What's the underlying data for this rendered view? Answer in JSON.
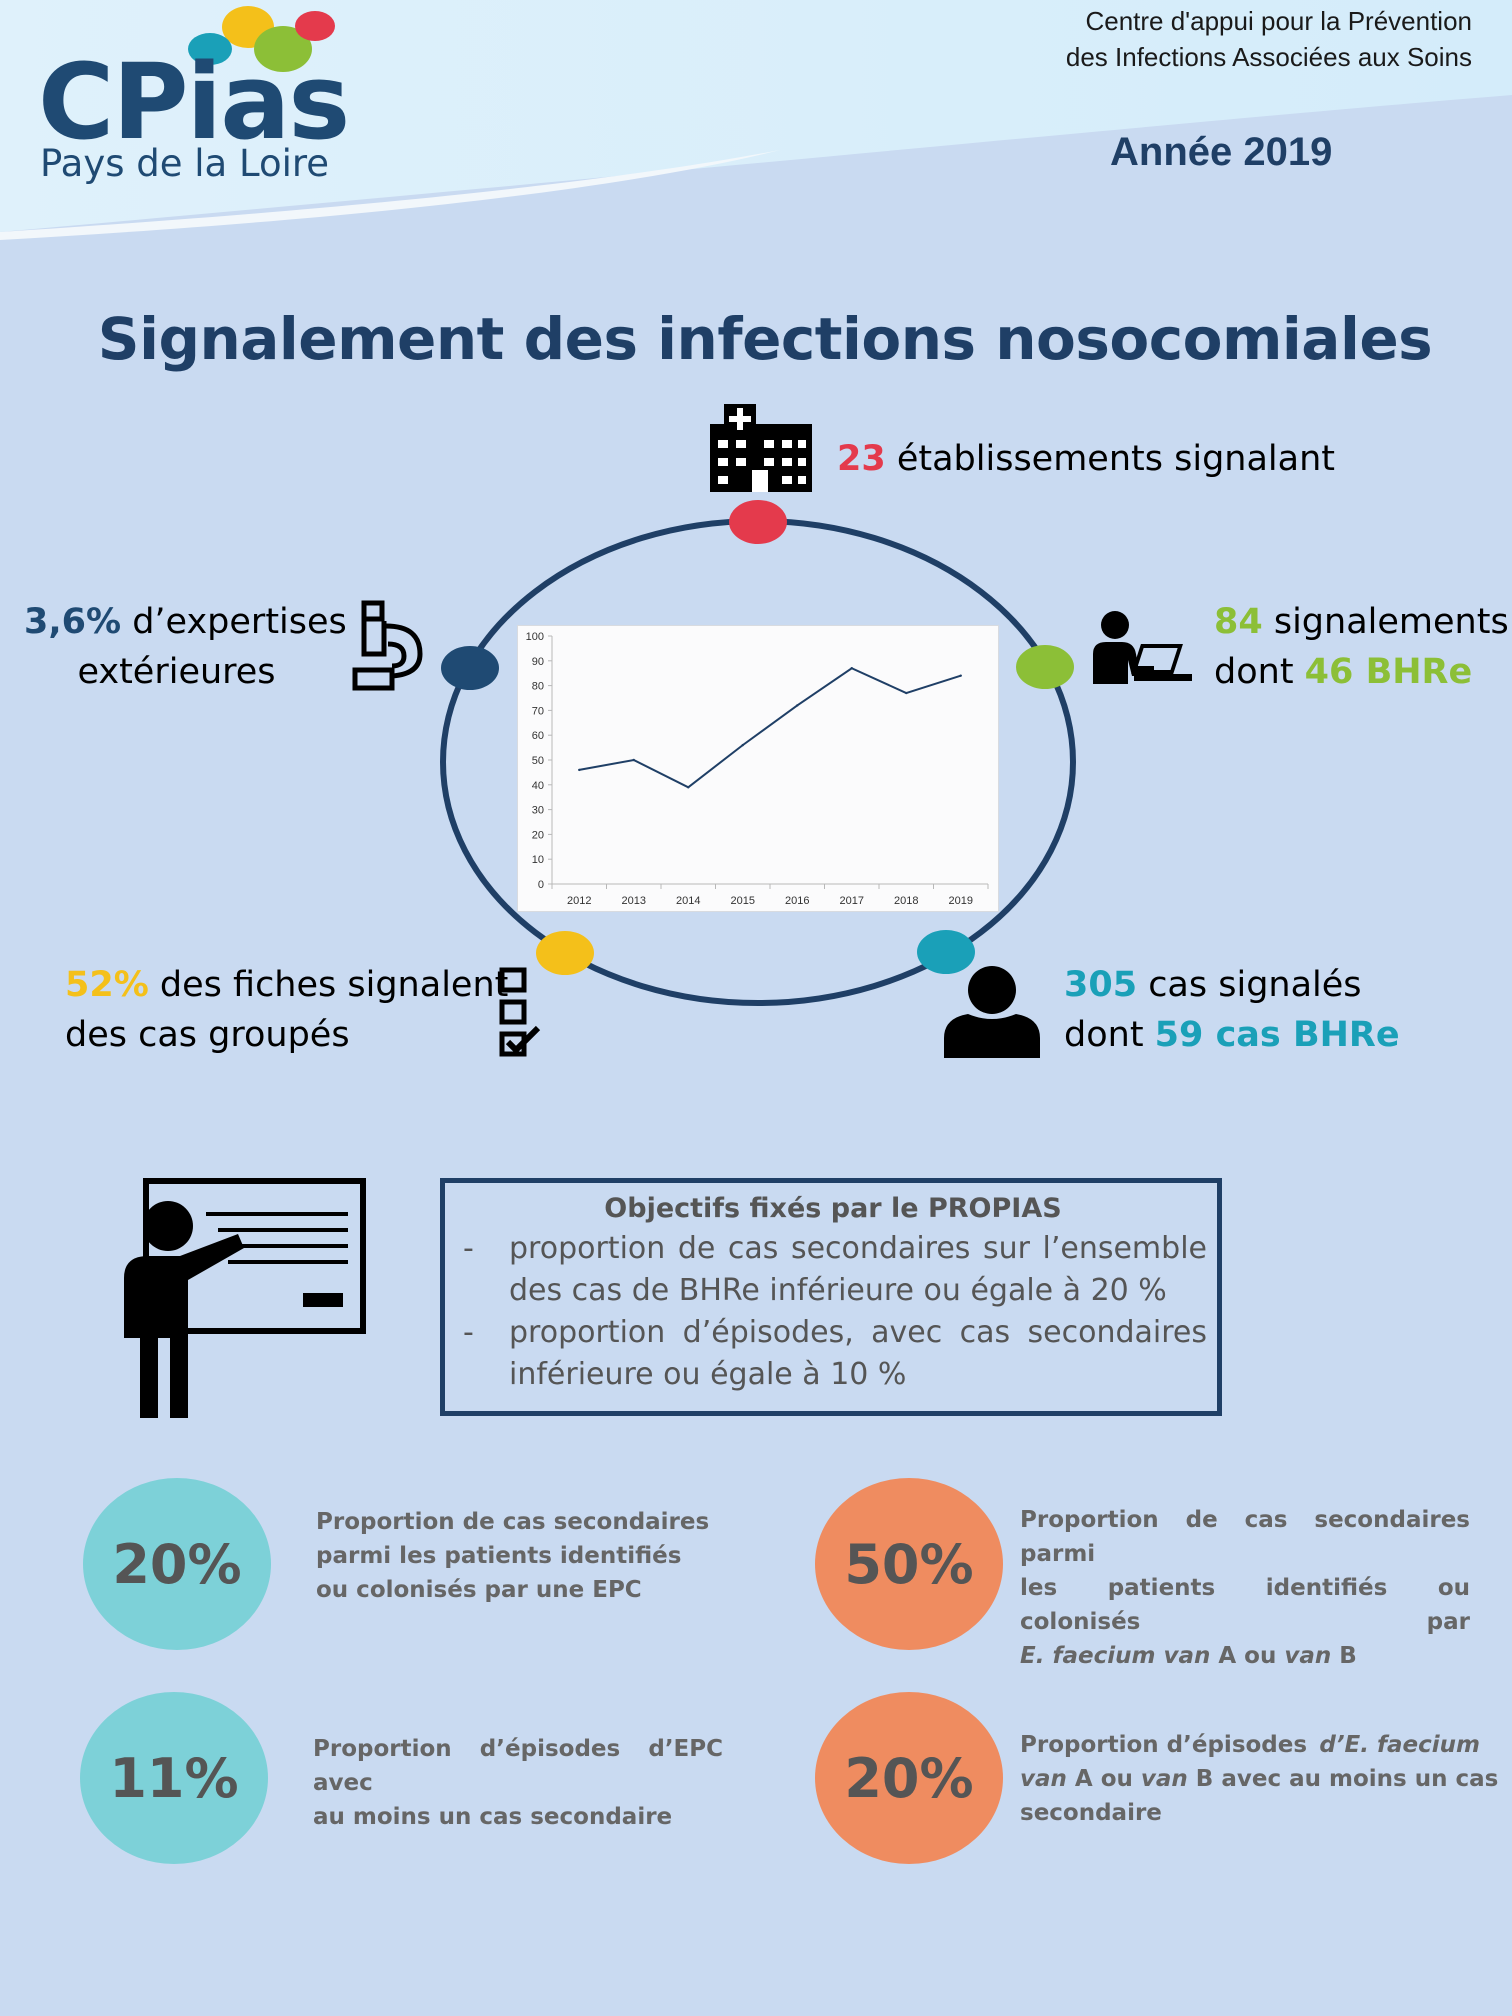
{
  "header": {
    "brand_name": "CPias",
    "brand_region": "Pays de la Loire",
    "org_line1": "Centre d'appui pour la Prévention",
    "org_line2": "des Infections Associées aux Soins",
    "year": "Année 2019"
  },
  "title": "Signalement des infections nosocomiales",
  "stats": {
    "etablissements": {
      "value": "23",
      "text": " établissements signalant"
    },
    "signalements": {
      "value": "84",
      "text": " signalements",
      "line2_prefix": "dont ",
      "line2_value": "46 BHRe"
    },
    "cas": {
      "value": "305",
      "text": " cas signalés",
      "line2_prefix": "dont ",
      "line2_value": "59 cas BHRe"
    },
    "groupes": {
      "value": "52%",
      "text": " des fiches signalent",
      "line2": "des cas groupés"
    },
    "expertises": {
      "value": "3,6%",
      "text": " d’expertises",
      "line2": "extérieures"
    }
  },
  "colors": {
    "red": "#e43a4c",
    "green": "#8cbf37",
    "teal": "#1aa0b8",
    "yellow": "#f4c01a",
    "navy": "#1f4a73",
    "line": "#1f3f66"
  },
  "icons": [
    "hospital-icon",
    "laptop-user-icon",
    "user-icon",
    "checklist-icon",
    "microscope-icon",
    "teacher-board-icon"
  ],
  "chart_data": {
    "type": "line",
    "x": [
      "2012",
      "2013",
      "2014",
      "2015",
      "2016",
      "2017",
      "2018",
      "2019"
    ],
    "series": [
      {
        "values": [
          46,
          50,
          39,
          56,
          72,
          87,
          77,
          84
        ]
      }
    ],
    "ylim": [
      0,
      100
    ],
    "yticks": [
      "0",
      "10",
      "20",
      "30",
      "40",
      "50",
      "60",
      "70",
      "80",
      "90",
      "100"
    ],
    "grid": false
  },
  "objectives": {
    "title": "Objectifs fixés par le PROPIAS",
    "items": [
      "proportion de cas secondaires sur l’ensemble des cas de BHRe inférieure ou égale à 20 %",
      "proportion d’épisodes, avec cas secondaires inférieure ou égale à 10 %"
    ]
  },
  "indicators": [
    {
      "value": "20%",
      "line1": "Proportion de cas secondaires",
      "line2": "parmi les patients identifiés",
      "line3": "ou colonisés par une EPC"
    },
    {
      "value": "50%",
      "line1": "Proportion de cas secondaires parmi",
      "line2": "les patients identifiés ou colonisés par",
      "line3_italic1": "E. faecium van",
      "line3_mid": " A ou ",
      "line3_italic2": "van",
      "line3_end": " B"
    },
    {
      "value": "11%",
      "line1": "Proportion d’épisodes d’EPC avec",
      "line2": "au moins un cas secondaire"
    },
    {
      "value": "20%",
      "line1_a": "Proportion d’épisodes ",
      "line1_italic": "d’E. faecium",
      "line2_italic1": "van",
      "line2_mid": " A ou ",
      "line2_italic2": "van",
      "line2_end": " B avec au moins un cas",
      "line3": "secondaire"
    }
  ]
}
